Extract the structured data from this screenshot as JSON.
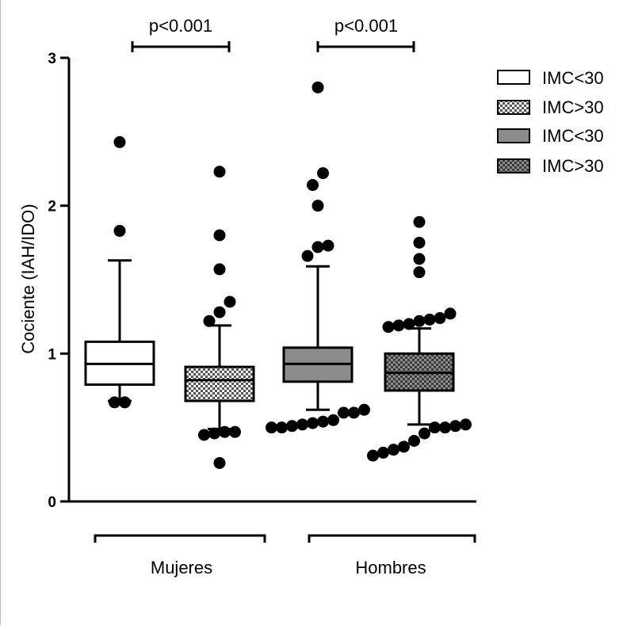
{
  "chart_data": {
    "type": "box",
    "ylabel": "Cociente (IAH/IDO)",
    "ylim": [
      0,
      3
    ],
    "yticks": [
      "0",
      "1",
      "2",
      "3"
    ],
    "groups": [
      "Mujeres",
      "Hombres"
    ],
    "legend": {
      "placement": "top-right",
      "entries": [
        {
          "label": "IMC<30",
          "fill": "white"
        },
        {
          "label": "IMC>30",
          "fill": "checker"
        },
        {
          "label": "IMC<30",
          "fill": "gray"
        },
        {
          "label": "IMC>30",
          "fill": "dark-checker"
        }
      ]
    },
    "annotations": [
      {
        "text": "p<0.001",
        "group": "Mujeres"
      },
      {
        "text": "p<0.001",
        "group": "Hombres"
      }
    ],
    "boxes": [
      {
        "name": "Mujeres IMC<30",
        "group": "Mujeres",
        "fill": "white",
        "whisker_low": 0.68,
        "q1": 0.79,
        "median": 0.93,
        "q3": 1.08,
        "whisker_high": 1.63,
        "outliers": [
          0.67,
          0.67,
          1.83,
          2.43
        ]
      },
      {
        "name": "Mujeres IMC>30",
        "group": "Mujeres",
        "fill": "checker",
        "whisker_low": 0.49,
        "q1": 0.68,
        "median": 0.82,
        "q3": 0.91,
        "whisker_high": 1.19,
        "outliers": [
          0.26,
          0.45,
          0.46,
          0.47,
          0.47,
          1.22,
          1.28,
          1.35,
          1.57,
          1.8,
          2.23
        ]
      },
      {
        "name": "Hombres IMC<30",
        "group": "Hombres",
        "fill": "gray",
        "whisker_low": 0.62,
        "q1": 0.81,
        "median": 0.93,
        "q3": 1.04,
        "whisker_high": 1.59,
        "outliers": [
          0.5,
          0.5,
          0.51,
          0.52,
          0.53,
          0.54,
          0.55,
          0.6,
          0.6,
          0.62,
          1.66,
          1.72,
          1.73,
          2.0,
          2.14,
          2.22,
          2.8
        ]
      },
      {
        "name": "Hombres IMC>30",
        "group": "Hombres",
        "fill": "dark-checker",
        "whisker_low": 0.52,
        "q1": 0.75,
        "median": 0.87,
        "q3": 1.0,
        "whisker_high": 1.17,
        "outliers": [
          0.31,
          0.33,
          0.35,
          0.37,
          0.41,
          0.46,
          0.5,
          0.5,
          0.51,
          0.52,
          1.18,
          1.19,
          1.2,
          1.22,
          1.23,
          1.24,
          1.27,
          1.55,
          1.64,
          1.75,
          1.89
        ]
      }
    ]
  }
}
